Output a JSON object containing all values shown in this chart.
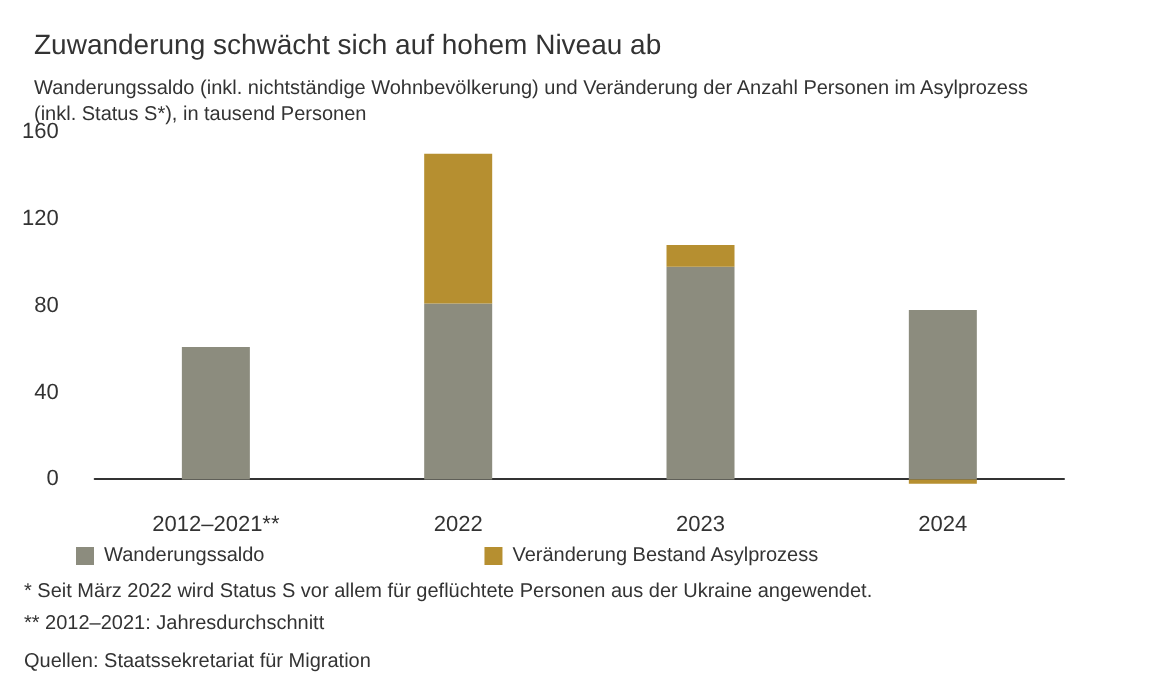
{
  "chart_data": {
    "type": "bar",
    "title": "Zuwanderung schwächt sich auf hohem Niveau ab",
    "subtitle": "Wanderungssaldo (inkl. nichtständige Wohnbevölkerung) und Veränderung der Anzahl Personen im Asylprozess\n(inkl. Status S*), in tausend Personen",
    "categories": [
      "2012–2021**",
      "2022",
      "2023",
      "2024"
    ],
    "series": [
      {
        "name": "Wanderungssaldo",
        "color": "#8c8c7e",
        "values": [
          61,
          81,
          98,
          78
        ]
      },
      {
        "name": "Veränderung Bestand Asylprozess",
        "color": "#b68f30",
        "values": [
          null,
          69,
          10,
          -2
        ]
      }
    ],
    "stacked": true,
    "ylim": [
      -3,
      160
    ],
    "yticks": [
      0,
      40,
      80,
      120,
      160
    ],
    "grid": false,
    "legend": "bottom left",
    "annotations": [
      "* Seit März 2022 wird Status S vor allem für geflüchtete Personen aus der Ukraine angewendet.",
      "** 2012–2021: Jahresdurchschnitt",
      "Quellen: Staatssekretariat für Migration"
    ]
  }
}
